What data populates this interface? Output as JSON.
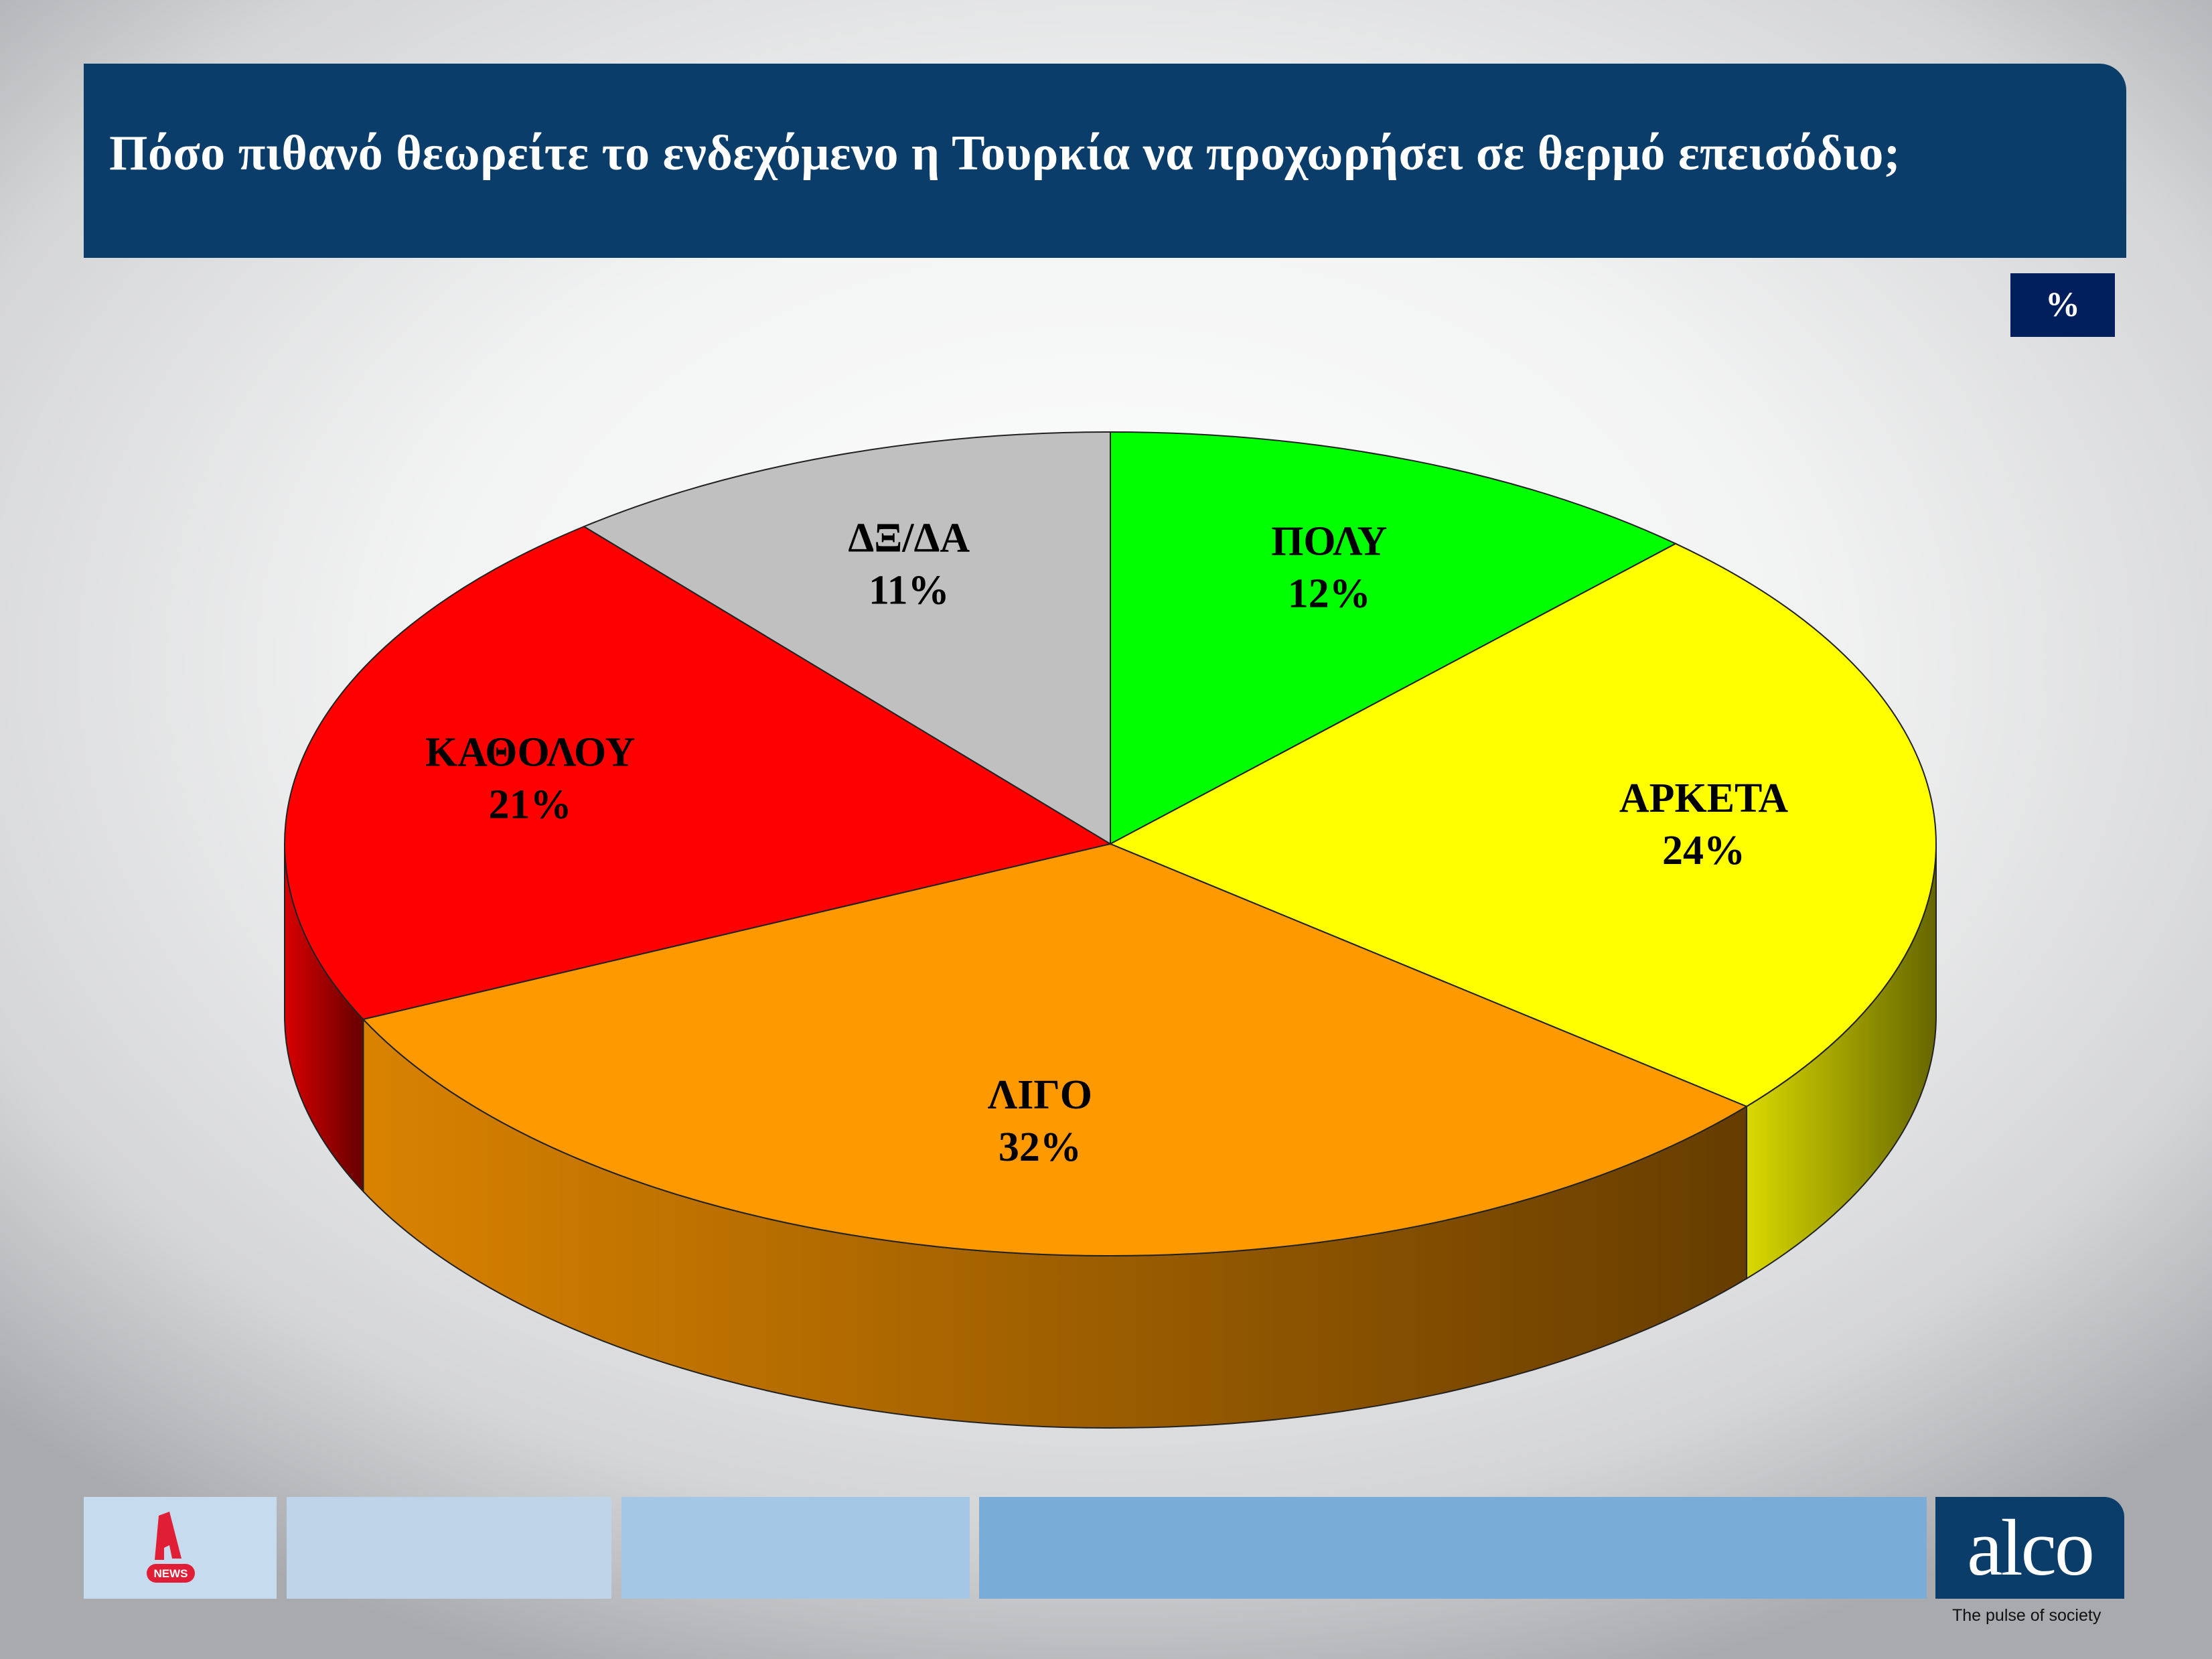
{
  "header": {
    "title": "Πόσο πιθανό θεωρείτε το ενδεχόμενο η Τουρκία να προχωρήσει σε θερμό επεισόδιο;",
    "unit": "%"
  },
  "chart_data": {
    "type": "pie",
    "style": "3d",
    "start": "top",
    "direction": "clockwise",
    "slices": [
      {
        "label": "ΠΟΛΥ",
        "value": 12,
        "display": "12%",
        "color": "#00ff00"
      },
      {
        "label": "ΑΡΚΕΤΑ",
        "value": 24,
        "display": "24%",
        "color": "#ffff00"
      },
      {
        "label": "ΛΙΓΟ",
        "value": 32,
        "display": "32%",
        "color": "#ff9900"
      },
      {
        "label": "ΚΑΘΟΛΟΥ",
        "value": 21,
        "display": "21%",
        "color": "#ff0000"
      },
      {
        "label": "ΔΞ/ΔΑ",
        "value": 11,
        "display": "11%",
        "color": "#c0c0c0"
      }
    ]
  },
  "footer": {
    "news_logo": "NEWS",
    "brand": "alco",
    "tagline": "The pulse of society",
    "box_colors": [
      "#c6dcee",
      "#bed5e9",
      "#a3c7e4",
      "#79acd6"
    ],
    "brand_color": "#0b3d6b"
  }
}
